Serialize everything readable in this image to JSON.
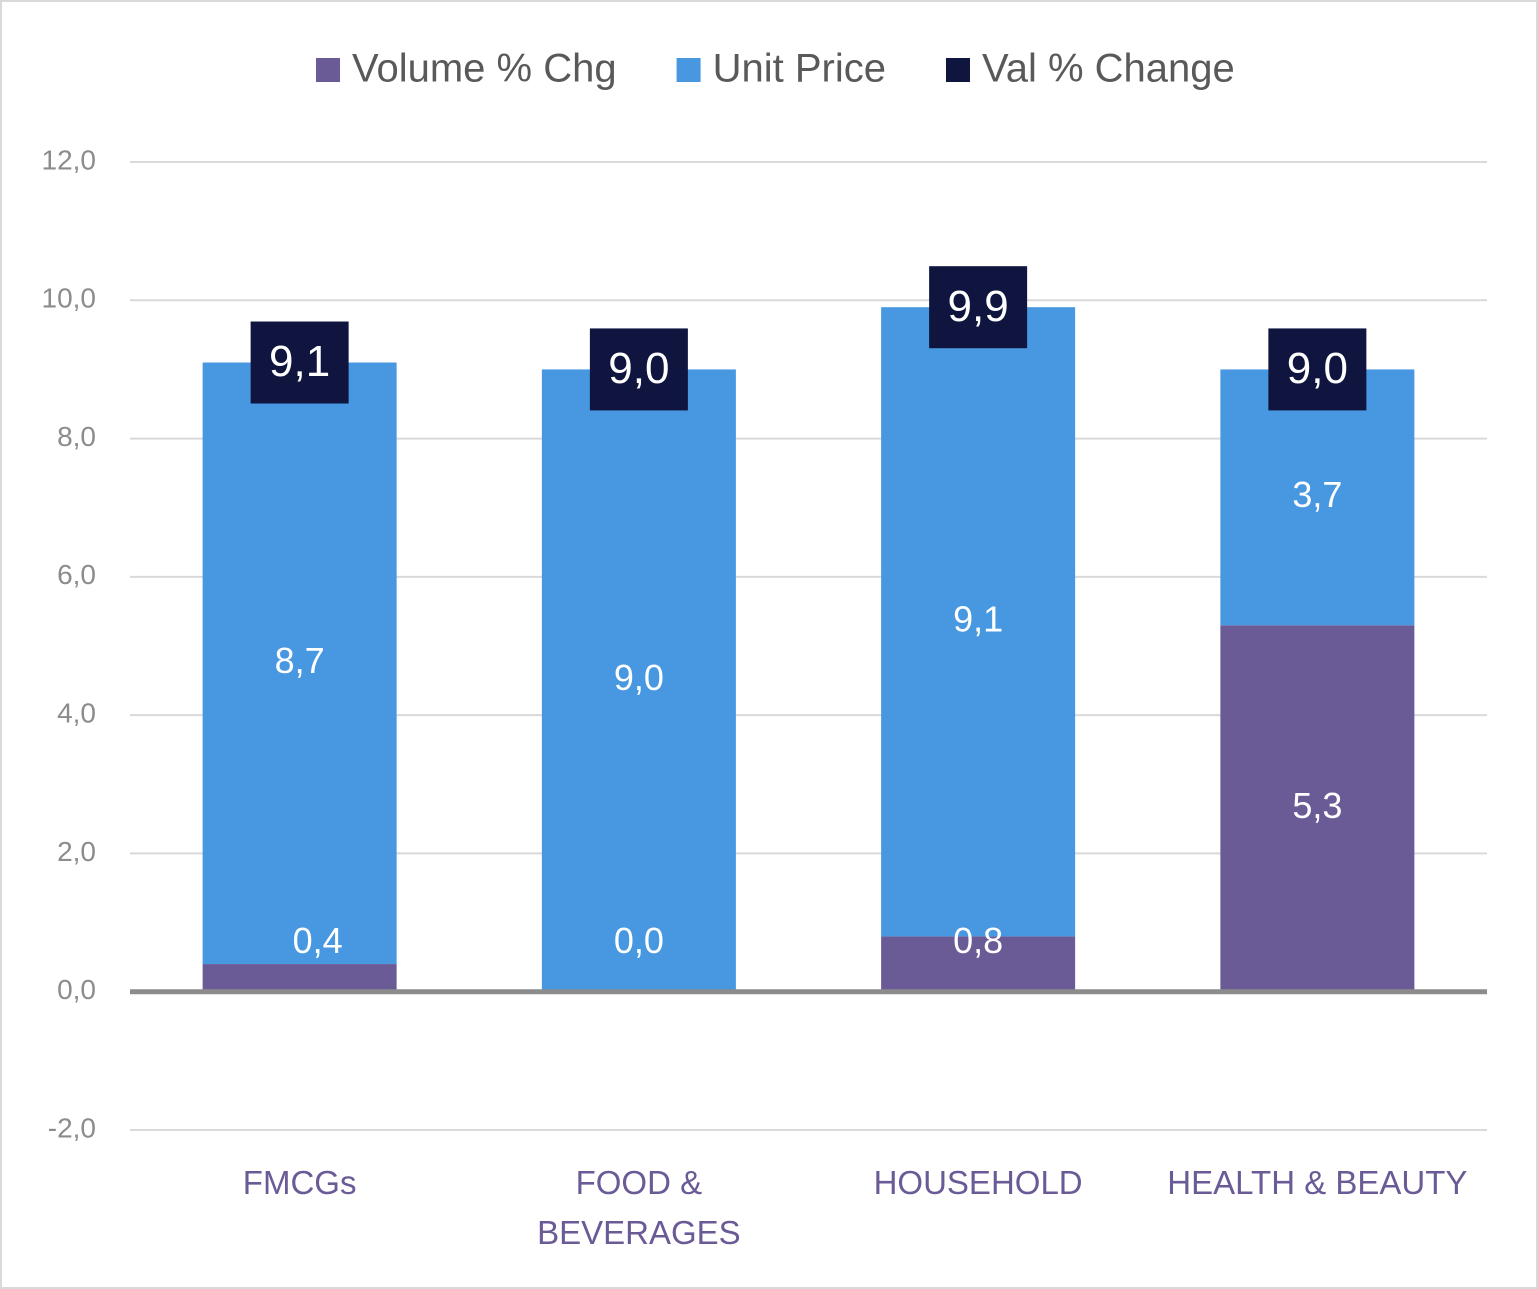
{
  "chart_data": {
    "type": "stacked-bar",
    "categories": [
      "FMCGs",
      "FOOD &\nBEVERAGES",
      "HOUSEHOLD",
      "HEALTH & BEAUTY"
    ],
    "series": [
      {
        "name": "Volume % Chg",
        "color": "#6a5a96",
        "values": [
          0.4,
          0.0,
          0.8,
          5.3
        ],
        "value_labels": [
          "0,4",
          "0,0",
          "0,8",
          "5,3"
        ]
      },
      {
        "name": "Unit Price",
        "color": "#4797e1",
        "values": [
          8.7,
          9.0,
          9.1,
          3.7
        ],
        "value_labels": [
          "8,7",
          "9,0",
          "9,1",
          "3,7"
        ]
      },
      {
        "name": "Val % Change",
        "color": "#10153f",
        "type": "label-box",
        "values": [
          9.1,
          9.0,
          9.9,
          9.0
        ],
        "value_labels": [
          "9,1",
          "9,0",
          "9,9",
          "9,0"
        ]
      }
    ],
    "ylim": [
      -2,
      12
    ],
    "yticks": [
      {
        "value": -2,
        "label": "-2,0"
      },
      {
        "value": 0,
        "label": "0,0"
      },
      {
        "value": 2,
        "label": "2,0"
      },
      {
        "value": 4,
        "label": "4,0"
      },
      {
        "value": 6,
        "label": "6,0"
      },
      {
        "value": 8,
        "label": "8,0"
      },
      {
        "value": 10,
        "label": "10,0"
      },
      {
        "value": 12,
        "label": "12,0"
      }
    ],
    "grid": true,
    "legend": "top"
  }
}
